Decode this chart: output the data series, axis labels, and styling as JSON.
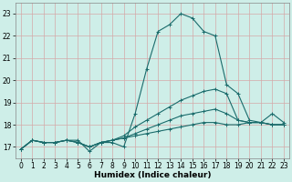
{
  "xlabel": "Humidex (Indice chaleur)",
  "bg_color": "#ceeee8",
  "grid_color": "#d4a8a8",
  "line_color": "#1a6b6b",
  "xlim": [
    -0.5,
    23.5
  ],
  "ylim": [
    16.5,
    23.5
  ],
  "yticks": [
    17,
    18,
    19,
    20,
    21,
    22,
    23
  ],
  "xticks": [
    0,
    1,
    2,
    3,
    4,
    5,
    6,
    7,
    8,
    9,
    10,
    11,
    12,
    13,
    14,
    15,
    16,
    17,
    18,
    19,
    20,
    21,
    22,
    23
  ],
  "series": [
    [
      16.9,
      17.3,
      17.2,
      17.2,
      17.3,
      17.3,
      16.8,
      17.2,
      17.2,
      17.0,
      18.5,
      20.5,
      22.2,
      22.5,
      23.0,
      22.8,
      22.2,
      22.0,
      19.8,
      19.4,
      18.2,
      18.1,
      18.5,
      18.1
    ],
    [
      16.9,
      17.3,
      17.2,
      17.2,
      17.3,
      17.2,
      17.0,
      17.2,
      17.3,
      17.5,
      17.9,
      18.2,
      18.5,
      18.8,
      19.1,
      19.3,
      19.5,
      19.6,
      19.4,
      18.2,
      18.1,
      18.1,
      18.0,
      18.0
    ],
    [
      16.9,
      17.3,
      17.2,
      17.2,
      17.3,
      17.2,
      17.0,
      17.2,
      17.3,
      17.4,
      17.6,
      17.8,
      18.0,
      18.2,
      18.4,
      18.5,
      18.6,
      18.7,
      18.5,
      18.2,
      18.1,
      18.1,
      18.0,
      18.0
    ],
    [
      16.9,
      17.3,
      17.2,
      17.2,
      17.3,
      17.2,
      17.0,
      17.2,
      17.3,
      17.4,
      17.5,
      17.6,
      17.7,
      17.8,
      17.9,
      18.0,
      18.1,
      18.1,
      18.0,
      18.0,
      18.1,
      18.1,
      18.0,
      18.0
    ]
  ],
  "label_fontsize": 5.5,
  "xlabel_fontsize": 6.5,
  "linewidth": 0.8,
  "markersize": 3.0,
  "markeredgewidth": 0.7
}
